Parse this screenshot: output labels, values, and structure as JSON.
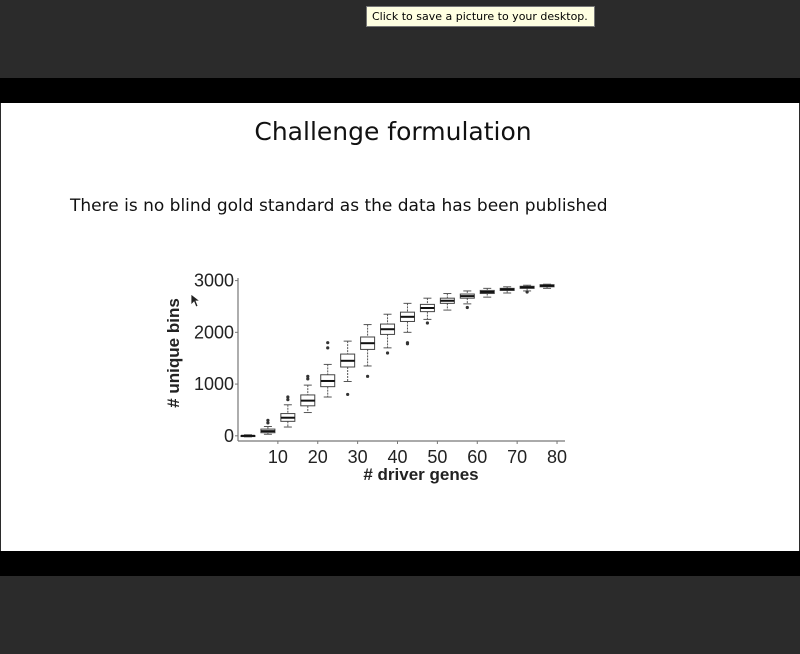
{
  "tooltip": {
    "text": "Click to save a picture to your desktop."
  },
  "slide": {
    "title": "Challenge formulation",
    "body_text": "There is no blind gold standard as the data has been published"
  },
  "chart_data": {
    "type": "box",
    "xlabel": "# driver genes",
    "ylabel": "# unique bins",
    "x_ticks": [
      10,
      20,
      30,
      40,
      50,
      60,
      70,
      80
    ],
    "y_ticks": [
      0,
      1000,
      2000,
      3000
    ],
    "ylim": [
      -100,
      3050
    ],
    "xlim": [
      0,
      82
    ],
    "boxes": [
      {
        "x": 2.5,
        "min": -20,
        "q1": -5,
        "median": 0,
        "q3": 5,
        "max": 20,
        "outliers": []
      },
      {
        "x": 7.5,
        "min": 30,
        "q1": 60,
        "median": 90,
        "q3": 130,
        "max": 180,
        "outliers": [
          250,
          300
        ]
      },
      {
        "x": 12.5,
        "min": 170,
        "q1": 280,
        "median": 350,
        "q3": 430,
        "max": 600,
        "outliers": [
          700,
          750
        ]
      },
      {
        "x": 17.5,
        "min": 450,
        "q1": 580,
        "median": 680,
        "q3": 790,
        "max": 980,
        "outliers": [
          1100,
          1150
        ]
      },
      {
        "x": 22.5,
        "min": 750,
        "q1": 950,
        "median": 1060,
        "q3": 1180,
        "max": 1380,
        "outliers": [
          1700,
          1800
        ]
      },
      {
        "x": 27.5,
        "min": 1050,
        "q1": 1330,
        "median": 1450,
        "q3": 1580,
        "max": 1830,
        "outliers": [
          800
        ]
      },
      {
        "x": 32.5,
        "min": 1350,
        "q1": 1670,
        "median": 1790,
        "q3": 1910,
        "max": 2150,
        "outliers": [
          1150
        ]
      },
      {
        "x": 37.5,
        "min": 1700,
        "q1": 1960,
        "median": 2060,
        "q3": 2160,
        "max": 2350,
        "outliers": [
          1600
        ]
      },
      {
        "x": 42.5,
        "min": 2000,
        "q1": 2210,
        "median": 2300,
        "q3": 2390,
        "max": 2560,
        "outliers": [
          1800,
          1780
        ]
      },
      {
        "x": 47.5,
        "min": 2250,
        "q1": 2400,
        "median": 2470,
        "q3": 2540,
        "max": 2660,
        "outliers": [
          2180
        ]
      },
      {
        "x": 52.5,
        "min": 2430,
        "q1": 2560,
        "median": 2610,
        "q3": 2660,
        "max": 2750,
        "outliers": []
      },
      {
        "x": 57.5,
        "min": 2550,
        "q1": 2660,
        "median": 2700,
        "q3": 2740,
        "max": 2800,
        "outliers": [
          2480
        ]
      },
      {
        "x": 62.5,
        "min": 2680,
        "q1": 2750,
        "median": 2780,
        "q3": 2810,
        "max": 2850,
        "outliers": []
      },
      {
        "x": 67.5,
        "min": 2760,
        "q1": 2810,
        "median": 2830,
        "q3": 2850,
        "max": 2880,
        "outliers": []
      },
      {
        "x": 72.5,
        "min": 2800,
        "q1": 2850,
        "median": 2870,
        "q3": 2890,
        "max": 2910,
        "outliers": [
          2780
        ]
      },
      {
        "x": 77.5,
        "min": 2850,
        "q1": 2880,
        "median": 2900,
        "q3": 2920,
        "max": 2930,
        "outliers": []
      }
    ],
    "grid": false,
    "legend": "none"
  }
}
